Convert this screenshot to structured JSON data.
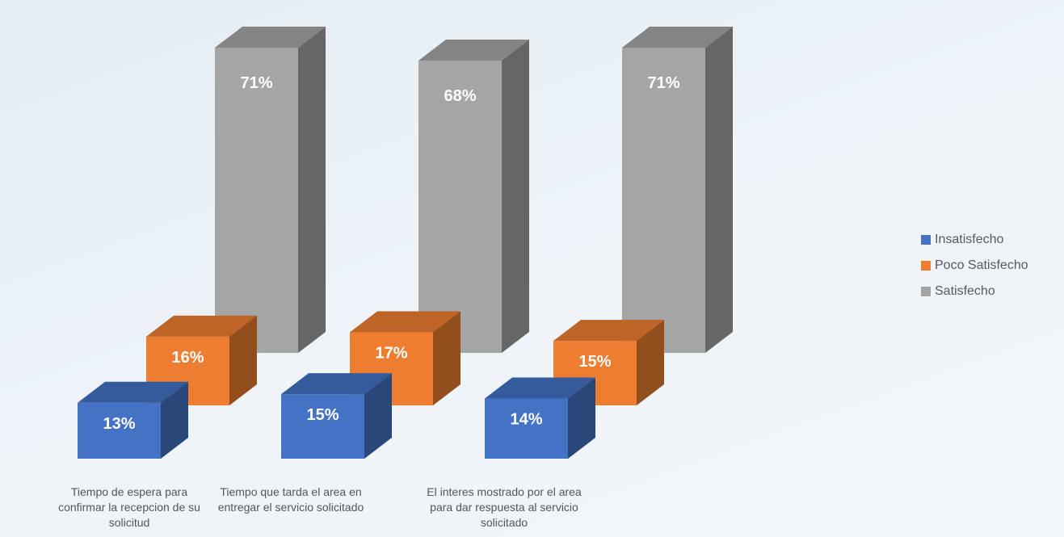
{
  "chart_data": {
    "type": "bar",
    "style": "3d-column",
    "categories": [
      "Tiempo de espera para confirmar la recepcion de su solicitud",
      "Tiempo que tarda el area en entregar el servicio solicitado",
      "El interes mostrado por el area para dar respuesta al servicio solicitado"
    ],
    "series": [
      {
        "name": "Insatisfecho",
        "values": [
          13,
          15,
          14
        ],
        "labels": [
          "13%",
          "15%",
          "14%"
        ],
        "color": "#4472c4"
      },
      {
        "name": "Poco Satisfecho",
        "values": [
          16,
          17,
          15
        ],
        "labels": [
          "16%",
          "17%",
          "15%"
        ],
        "color": "#ed7d31"
      },
      {
        "name": "Satisfecho",
        "values": [
          71,
          68,
          71
        ],
        "labels": [
          "71%",
          "68%",
          "71%"
        ],
        "color": "#a5a5a5"
      }
    ],
    "legend_position": "right",
    "grid": false,
    "axes_visible": false
  }
}
